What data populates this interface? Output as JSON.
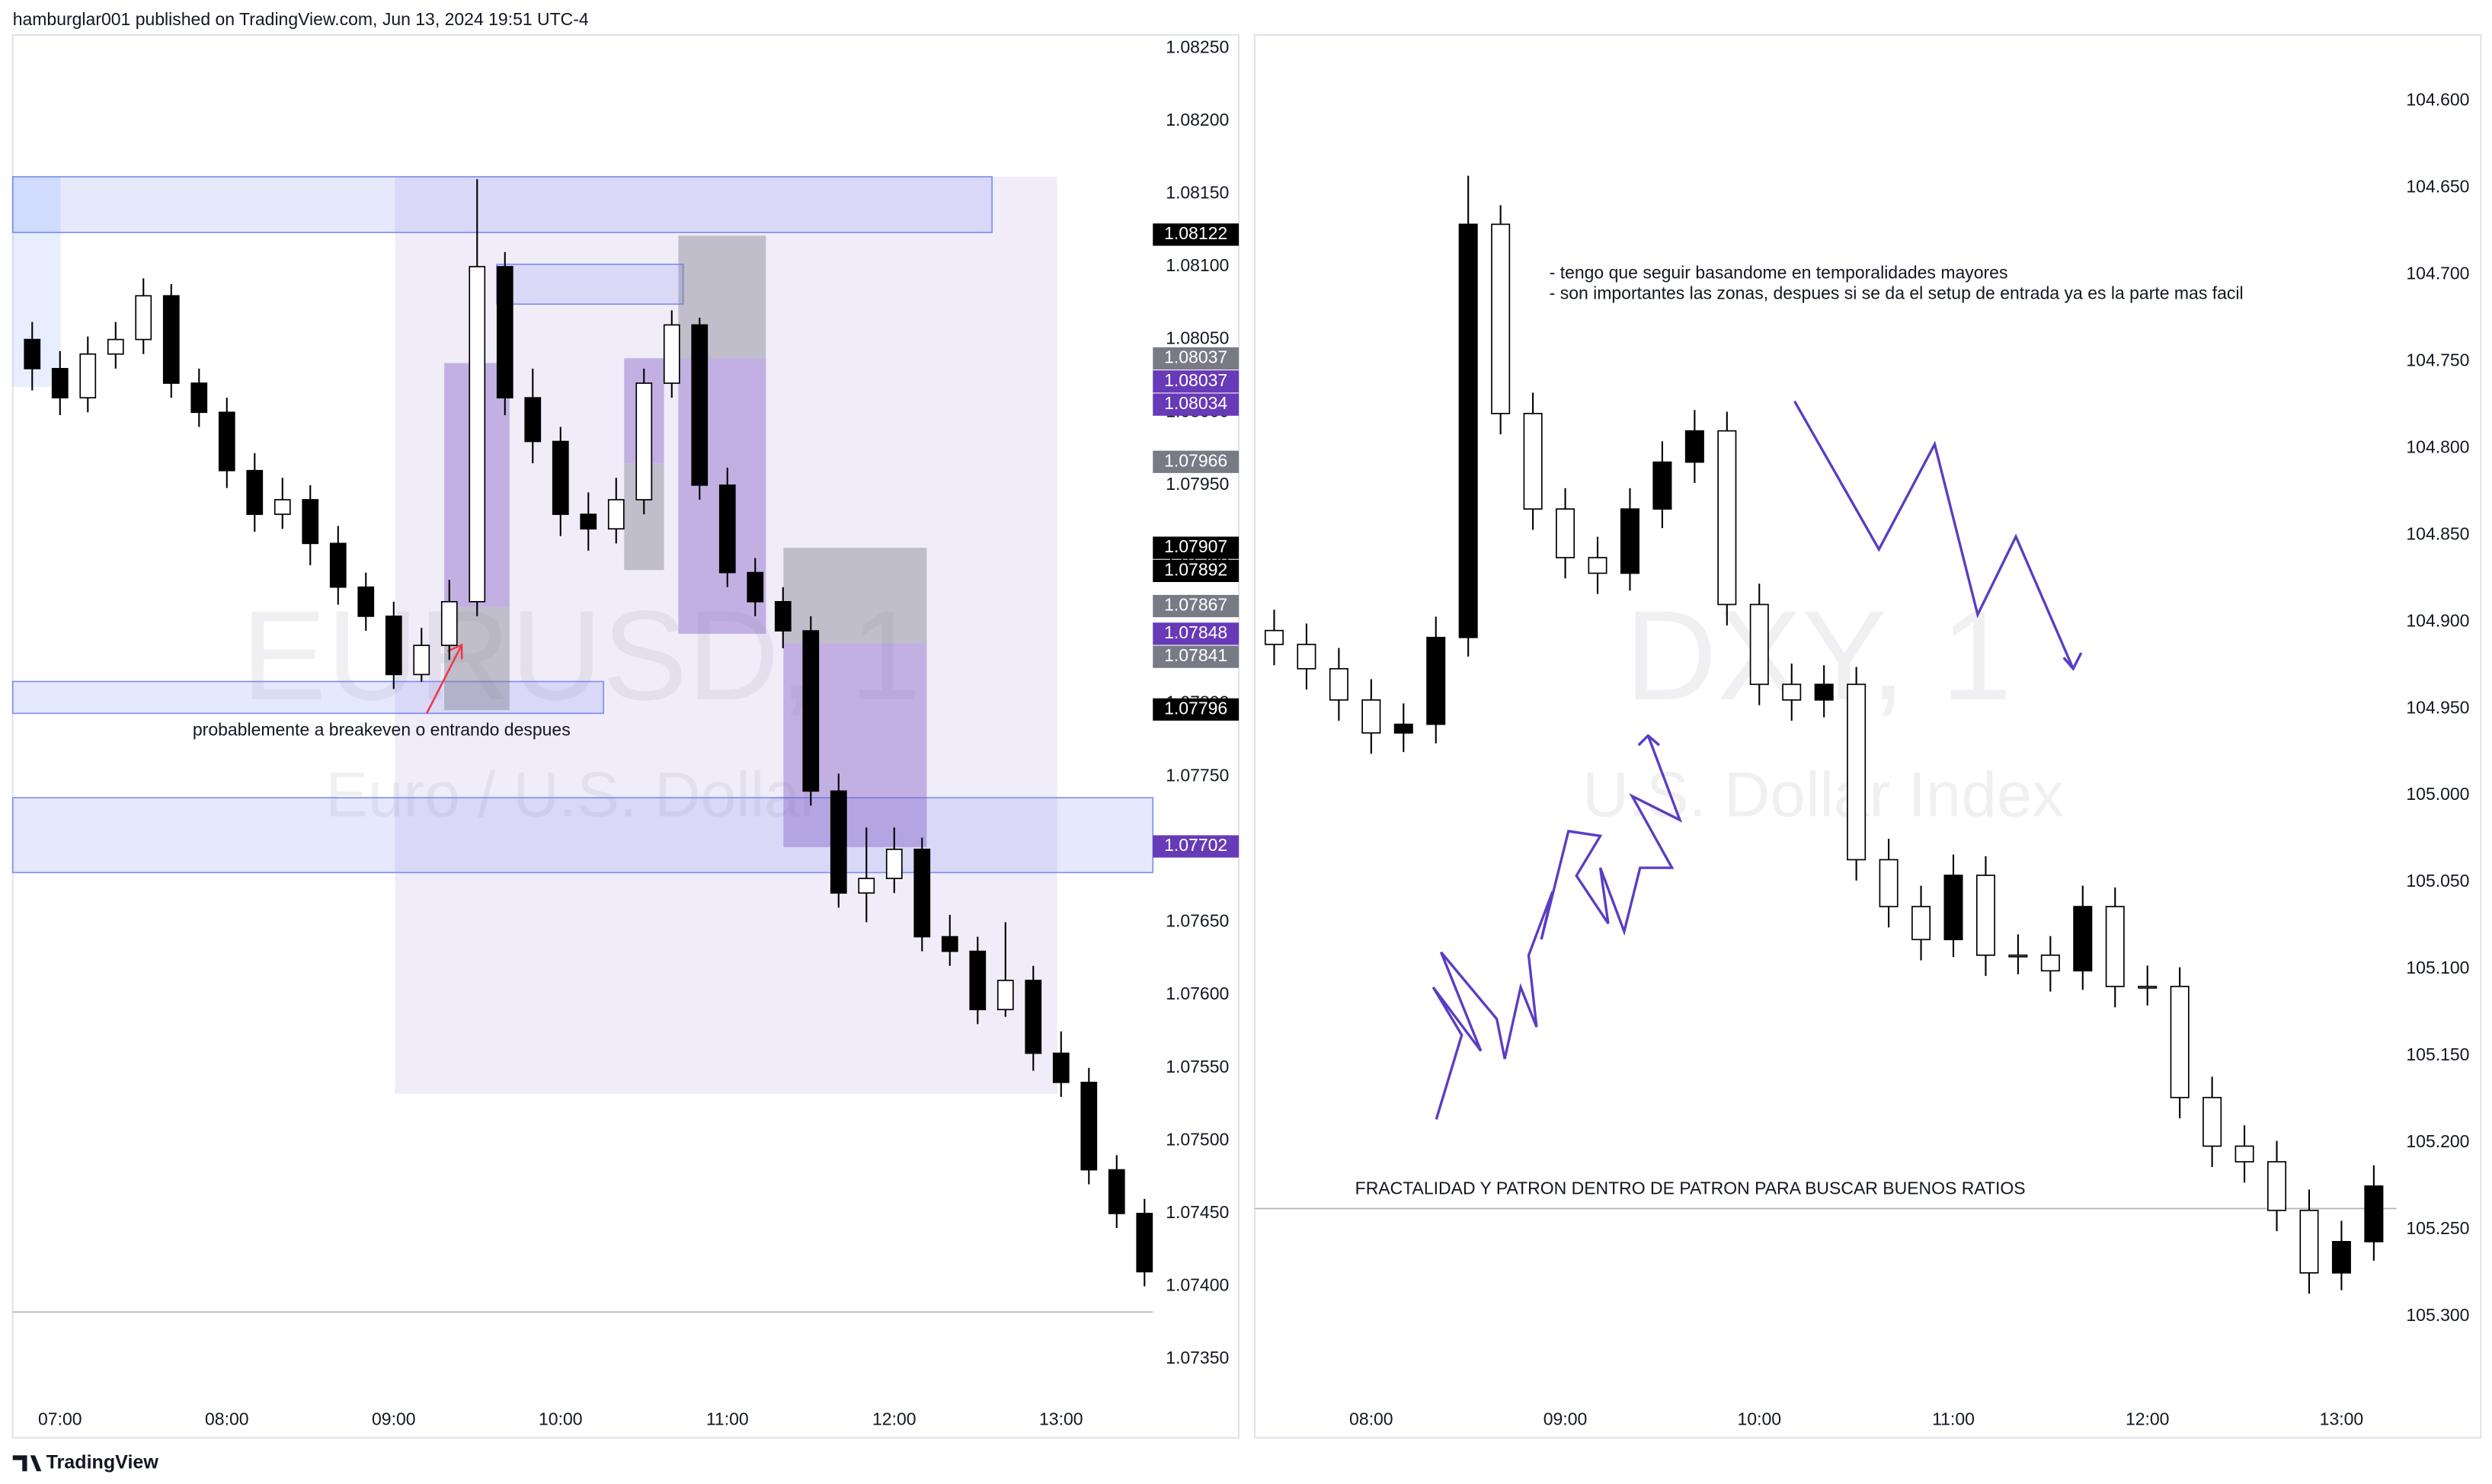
{
  "header": {
    "published": "hamburglar001 published on TradingView.com, Jun 13, 2024 19:51 UTC-4"
  },
  "footer": {
    "brand": "TradingView"
  },
  "chart_data": [
    {
      "type": "candlestick",
      "watermark": "EURUSD, 1",
      "watermark_subtitle": "Euro / U.S. Dollar",
      "annotations": [
        "probablemente a breakeven o entrando despues"
      ],
      "up_color": "#ffffff",
      "down_color": "#000000",
      "grid": false,
      "inverted": false,
      "xlim": [
        "06:43",
        "13:33"
      ],
      "xticks": [
        "07:00",
        "08:00",
        "09:00",
        "10:00",
        "11:00",
        "12:00",
        "13:00"
      ],
      "ylim": [
        1.07296,
        1.08259
      ],
      "yticks": [
        {
          "value": 1.0825,
          "label": "1.08250"
        },
        {
          "value": 1.082,
          "label": "1.08200"
        },
        {
          "value": 1.0815,
          "label": "1.08150"
        },
        {
          "value": 1.081,
          "label": "1.08100"
        },
        {
          "value": 1.0805,
          "label": "1.08050"
        },
        {
          "value": 1.08,
          "label": "1.08000"
        },
        {
          "value": 1.0795,
          "label": "1.07950"
        },
        {
          "value": 1.079,
          "label": "1.07900"
        },
        {
          "value": 1.0785,
          "label": "1.07850"
        },
        {
          "value": 1.078,
          "label": "1.07800"
        },
        {
          "value": 1.0775,
          "label": "1.07750"
        },
        {
          "value": 1.077,
          "label": "1.07700"
        },
        {
          "value": 1.0765,
          "label": "1.07650"
        },
        {
          "value": 1.076,
          "label": "1.07600"
        },
        {
          "value": 1.0755,
          "label": "1.07550"
        },
        {
          "value": 1.075,
          "label": "1.07500"
        },
        {
          "value": 1.0745,
          "label": "1.07450"
        },
        {
          "value": 1.074,
          "label": "1.07400"
        },
        {
          "value": 1.0735,
          "label": "1.07350"
        }
      ],
      "price_labels": [
        {
          "value": 1.08122,
          "color": "#000000"
        },
        {
          "value": 1.08037,
          "color": "#787b86"
        },
        {
          "value": 1.08037,
          "color": "#673ab7"
        },
        {
          "value": 1.08034,
          "color": "#673ab7"
        },
        {
          "value": 1.07966,
          "color": "#787b86"
        },
        {
          "value": 1.07907,
          "color": "#000000"
        },
        {
          "value": 1.07892,
          "color": "#000000"
        },
        {
          "value": 1.07867,
          "color": "#787b86"
        },
        {
          "value": 1.07848,
          "color": "#673ab7"
        },
        {
          "value": 1.07841,
          "color": "#787b86"
        },
        {
          "value": 1.07796,
          "color": "#000000"
        },
        {
          "value": 1.07702,
          "color": "#673ab7"
        }
      ],
      "x": [
        "06:50",
        "07:00",
        "07:10",
        "07:20",
        "07:30",
        "07:40",
        "07:50",
        "08:00",
        "08:10",
        "08:20",
        "08:30",
        "08:40",
        "08:50",
        "09:00",
        "09:10",
        "09:20",
        "09:30",
        "09:40",
        "09:50",
        "10:00",
        "10:10",
        "10:20",
        "10:30",
        "10:40",
        "10:50",
        "11:00",
        "11:10",
        "11:20",
        "11:30",
        "11:40",
        "11:50",
        "12:00",
        "12:10",
        "12:20",
        "12:30",
        "12:40",
        "12:50",
        "13:00",
        "13:10",
        "13:20",
        "13:30"
      ],
      "open": [
        1.0805,
        1.0803,
        1.0801,
        1.0804,
        1.0805,
        1.0808,
        1.0802,
        1.08,
        1.0796,
        1.0793,
        1.0794,
        1.0791,
        1.0788,
        1.0786,
        1.0782,
        1.0784,
        1.0787,
        1.081,
        1.0801,
        1.0798,
        1.0793,
        1.0792,
        1.0794,
        1.0802,
        1.0806,
        1.0795,
        1.0789,
        1.0787,
        1.0785,
        1.0774,
        1.0767,
        1.0768,
        1.077,
        1.0764,
        1.0763,
        1.0759,
        1.0761,
        1.0756,
        1.0754,
        1.0748,
        1.0745
      ],
      "high": [
        1.08062,
        1.08042,
        1.08052,
        1.08062,
        1.08092,
        1.08088,
        1.0803,
        1.0801,
        1.07972,
        1.07955,
        1.0795,
        1.07922,
        1.0789,
        1.0787,
        1.07852,
        1.07885,
        1.0816,
        1.0811,
        1.0803,
        1.0799,
        1.07945,
        1.07955,
        1.0803,
        1.0807,
        1.08065,
        1.07962,
        1.079,
        1.0788,
        1.0786,
        1.07752,
        1.07715,
        1.07715,
        1.07708,
        1.07655,
        1.0764,
        1.0765,
        1.0762,
        1.07575,
        1.0755,
        1.0749,
        1.0746
      ],
      "low": [
        1.08015,
        1.07998,
        1.08,
        1.0803,
        1.0804,
        1.0801,
        1.0799,
        1.07948,
        1.07918,
        1.0792,
        1.07895,
        1.07868,
        1.0785,
        1.0781,
        1.07815,
        1.0783,
        1.0786,
        1.07998,
        1.07965,
        1.07915,
        1.07905,
        1.0791,
        1.0793,
        1.0801,
        1.0794,
        1.0788,
        1.0786,
        1.07838,
        1.0773,
        1.0766,
        1.0765,
        1.0767,
        1.0763,
        1.0762,
        1.0758,
        1.07585,
        1.07548,
        1.0753,
        1.0747,
        1.0744,
        1.074
      ],
      "close": [
        1.0803,
        1.0801,
        1.0804,
        1.0805,
        1.0808,
        1.0802,
        1.08,
        1.0796,
        1.0793,
        1.0794,
        1.0791,
        1.0788,
        1.0786,
        1.0782,
        1.0784,
        1.0787,
        1.081,
        1.0801,
        1.0798,
        1.0793,
        1.0792,
        1.0794,
        1.0802,
        1.0806,
        1.0795,
        1.0789,
        1.0787,
        1.0785,
        1.0774,
        1.0767,
        1.0768,
        1.077,
        1.0764,
        1.0763,
        1.0759,
        1.0761,
        1.0756,
        1.0754,
        1.0748,
        1.0745,
        1.0741
      ]
    },
    {
      "type": "candlestick",
      "watermark": "DXY, 1",
      "watermark_subtitle": "U.S. Dollar Index",
      "annotations": [
        "- tengo que seguir basandome en temporalidades mayores",
        "- son importantes las zonas, despues si se da el setup de entrada ya es la parte mas facil",
        "FRACTALIDAD Y PATRON DENTRO DE PATRON PARA BUSCAR BUENOS RATIOS"
      ],
      "up_color": "#ffffff",
      "down_color": "#000000",
      "grid": false,
      "inverted": true,
      "xlim": [
        "07:24",
        "13:17"
      ],
      "xticks": [
        "08:00",
        "09:00",
        "10:00",
        "11:00",
        "12:00",
        "13:00"
      ],
      "ylim": [
        104.562,
        105.37
      ],
      "yticks": [
        {
          "value": 104.6,
          "label": "104.600"
        },
        {
          "value": 104.65,
          "label": "104.650"
        },
        {
          "value": 104.7,
          "label": "104.700"
        },
        {
          "value": 104.75,
          "label": "104.750"
        },
        {
          "value": 104.8,
          "label": "104.800"
        },
        {
          "value": 104.85,
          "label": "104.850"
        },
        {
          "value": 104.9,
          "label": "104.900"
        },
        {
          "value": 104.95,
          "label": "104.950"
        },
        {
          "value": 105,
          "label": "105.000"
        },
        {
          "value": 105.05,
          "label": "105.050"
        },
        {
          "value": 105.1,
          "label": "105.100"
        },
        {
          "value": 105.15,
          "label": "105.150"
        },
        {
          "value": 105.2,
          "label": "105.200"
        },
        {
          "value": 105.25,
          "label": "105.250"
        },
        {
          "value": 105.3,
          "label": "105.300"
        }
      ],
      "x": [
        "07:30",
        "07:40",
        "07:50",
        "08:00",
        "08:10",
        "08:20",
        "08:30",
        "08:40",
        "08:50",
        "09:00",
        "09:10",
        "09:20",
        "09:30",
        "09:40",
        "09:50",
        "10:00",
        "10:10",
        "10:20",
        "10:30",
        "10:40",
        "10:50",
        "11:00",
        "11:10",
        "11:20",
        "11:30",
        "11:40",
        "11:50",
        "12:00",
        "12:10",
        "12:20",
        "12:30",
        "12:40",
        "12:50",
        "13:00",
        "13:10"
      ],
      "open": [
        104.905,
        104.913,
        104.927,
        104.945,
        104.964,
        104.959,
        104.909,
        104.671,
        104.78,
        104.835,
        104.863,
        104.872,
        104.835,
        104.808,
        104.79,
        104.89,
        104.936,
        104.945,
        104.936,
        105.037,
        105.064,
        105.083,
        105.046,
        105.092,
        105.092,
        105.101,
        105.064,
        105.11,
        105.11,
        105.174,
        105.202,
        105.211,
        105.239,
        105.275,
        105.257
      ],
      "high": [
        104.925,
        104.939,
        104.957,
        104.976,
        104.975,
        104.97,
        104.92,
        104.792,
        104.847,
        104.875,
        104.884,
        104.882,
        104.846,
        104.82,
        104.902,
        104.948,
        104.957,
        104.955,
        105.049,
        105.076,
        105.095,
        105.093,
        105.104,
        105.103,
        105.113,
        105.112,
        105.122,
        105.121,
        105.186,
        105.214,
        105.223,
        105.251,
        105.287,
        105.285,
        105.268
      ],
      "low": [
        104.893,
        104.901,
        104.915,
        104.933,
        104.947,
        104.897,
        104.643,
        104.66,
        104.768,
        104.823,
        104.851,
        104.823,
        104.796,
        104.778,
        104.779,
        104.878,
        104.924,
        104.925,
        104.926,
        105.025,
        105.052,
        105.034,
        105.035,
        105.08,
        105.081,
        105.052,
        105.053,
        105.098,
        105.099,
        105.162,
        105.19,
        105.199,
        105.227,
        105.245,
        105.213
      ],
      "close": [
        104.913,
        104.927,
        104.945,
        104.964,
        104.959,
        104.909,
        104.671,
        104.78,
        104.835,
        104.863,
        104.872,
        104.835,
        104.808,
        104.79,
        104.89,
        104.936,
        104.945,
        104.936,
        105.037,
        105.064,
        105.083,
        105.046,
        105.092,
        105.092,
        105.101,
        105.064,
        105.11,
        105.11,
        105.174,
        105.202,
        105.211,
        105.239,
        105.275,
        105.257,
        105.225
      ]
    }
  ]
}
